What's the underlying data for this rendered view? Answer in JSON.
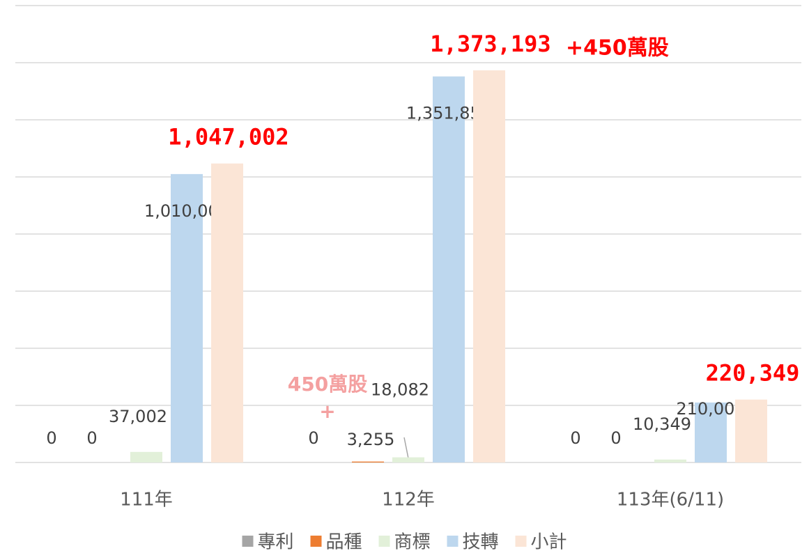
{
  "chart_data": {
    "type": "bar",
    "categories": [
      "111年",
      "112年",
      "113年(6/11)"
    ],
    "series": [
      {
        "name": "專利",
        "color": "#a5a5a5",
        "values": [
          0,
          0,
          0
        ],
        "value_labels": [
          "0",
          "0",
          "0"
        ]
      },
      {
        "name": "品種",
        "color": "#ed7d31",
        "values": [
          0,
          3255,
          0
        ],
        "value_labels": [
          "0",
          "3,255",
          "0"
        ]
      },
      {
        "name": "商標",
        "color": "#e2f0d9",
        "values": [
          37002,
          18082,
          10349
        ],
        "value_labels": [
          "37,002",
          "18,082",
          "10,349"
        ]
      },
      {
        "name": "技轉",
        "color": "#bdd7ee",
        "values": [
          1010000,
          1351856,
          210000
        ],
        "value_labels": [
          "1,010,000",
          "1,351,856",
          "210,000"
        ]
      },
      {
        "name": "小計",
        "color": "#fbe5d6",
        "values": [
          1047002,
          1373193,
          220349
        ],
        "value_labels": [
          "1,047,002",
          "1,373,193",
          "220,349"
        ]
      }
    ],
    "annotations": [
      "+450萬股",
      "450萬股",
      "+"
    ],
    "ylim": [
      0,
      1600000
    ],
    "yticks": [
      0,
      200000,
      400000,
      600000,
      800000,
      1000000,
      1200000,
      1400000,
      1600000
    ],
    "grid": true,
    "legend": "bottom"
  }
}
